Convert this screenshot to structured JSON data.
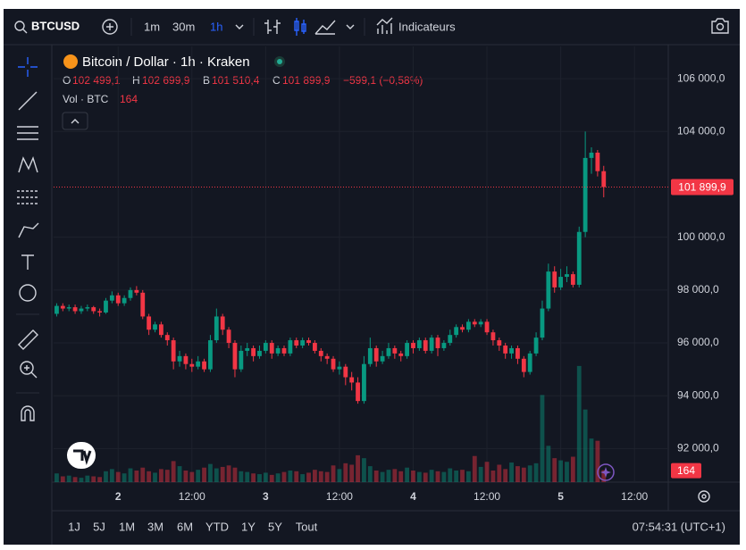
{
  "toolbar": {
    "symbol": "BTCUSD",
    "intervals": [
      "1m",
      "30m",
      "1h"
    ],
    "indicators": "Indicateurs"
  },
  "chart_data": {
    "type": "candlestick",
    "title": "Bitcoin / Dollar · 1h · Kraken",
    "legend": {
      "o_label": "O",
      "o": "102 499,1",
      "h_label": "H",
      "h": "102 699,9",
      "l_label": "B",
      "l": "101 510,4",
      "c_label": "C",
      "c": "101 899,9",
      "change": "−599,1 (−0,58%)",
      "volume_label": "Vol · BTC"
    },
    "up_color": "#089981",
    "down_color": "#f23645",
    "open": [
      97100,
      97400,
      97300,
      97350,
      97200,
      97300,
      97350,
      97200,
      97150,
      97600,
      97800,
      97500,
      97700,
      98000,
      97900,
      97000,
      96500,
      96700,
      96300,
      96100,
      95300,
      95500,
      95200,
      95100,
      95300,
      95000,
      96100,
      97000,
      96500,
      96000,
      95000,
      95700,
      95800,
      95500,
      95700,
      96000,
      95600,
      95800,
      95600,
      96100,
      95900,
      96100,
      96000,
      95700,
      95500,
      95400,
      95000,
      95100,
      94700,
      94500,
      93800,
      95200,
      95800,
      95300,
      95500,
      95800,
      95600,
      95500,
      96000,
      95800,
      96100,
      95700,
      96200,
      95800,
      96000,
      96300,
      96600,
      96500,
      96800,
      96700,
      96800,
      96400,
      96100,
      95900,
      95600,
      95800,
      95400,
      94900,
      95600,
      96200,
      97300,
      98700,
      98100,
      98500,
      98600,
      98200,
      100200,
      103000,
      103200,
      102499.1
    ],
    "high": [
      97500,
      97500,
      97450,
      97450,
      97400,
      97450,
      97400,
      97300,
      97700,
      97950,
      97900,
      97800,
      98100,
      98150,
      98000,
      97100,
      96800,
      96800,
      96400,
      96200,
      95700,
      95600,
      95400,
      95500,
      95400,
      96300,
      97300,
      97100,
      96600,
      96100,
      95900,
      96000,
      95900,
      95900,
      96100,
      96100,
      95900,
      95900,
      96200,
      96200,
      96200,
      96200,
      96100,
      95800,
      95600,
      95500,
      95300,
      95200,
      94900,
      94700,
      95500,
      96200,
      95900,
      95700,
      96000,
      95900,
      95700,
      96100,
      96100,
      96200,
      96200,
      96300,
      96300,
      96100,
      96500,
      96700,
      96700,
      96900,
      96900,
      96900,
      96900,
      96500,
      96200,
      96000,
      95900,
      95900,
      95500,
      95700,
      96400,
      97600,
      99000,
      98900,
      98800,
      98900,
      98700,
      100400,
      104000,
      103400,
      103300,
      102699.9
    ],
    "low": [
      97000,
      97200,
      97200,
      97100,
      97100,
      97200,
      97100,
      97000,
      97100,
      97500,
      97400,
      97400,
      97600,
      97800,
      96900,
      96300,
      96400,
      96200,
      95900,
      95000,
      95100,
      95000,
      94900,
      95000,
      94900,
      94900,
      96000,
      96300,
      95800,
      94700,
      94900,
      95500,
      95300,
      95400,
      95600,
      95400,
      95500,
      95500,
      95500,
      95800,
      95800,
      95900,
      95600,
      95300,
      95200,
      94900,
      94800,
      94400,
      94200,
      93700,
      93700,
      95100,
      95100,
      95200,
      95400,
      95400,
      95300,
      95400,
      95600,
      95700,
      95600,
      95600,
      95500,
      95700,
      95900,
      96200,
      96400,
      96400,
      96600,
      96600,
      96300,
      95900,
      95700,
      95400,
      95400,
      95200,
      94700,
      94800,
      95500,
      96100,
      97200,
      97900,
      98000,
      98300,
      98100,
      98100,
      100000,
      102400,
      102300,
      101510.4
    ],
    "close": [
      97400,
      97300,
      97350,
      97200,
      97300,
      97350,
      97200,
      97150,
      97600,
      97800,
      97500,
      97700,
      98000,
      97900,
      97000,
      96500,
      96700,
      96300,
      96100,
      95300,
      95500,
      95200,
      95100,
      95300,
      95000,
      96100,
      97000,
      96500,
      96000,
      95000,
      95700,
      95800,
      95500,
      95700,
      96000,
      95600,
      95800,
      95600,
      96100,
      95900,
      96100,
      96000,
      95700,
      95500,
      95400,
      95000,
      95100,
      94700,
      94500,
      93800,
      95200,
      95800,
      95300,
      95500,
      95800,
      95600,
      95500,
      96000,
      95800,
      96100,
      95700,
      96200,
      95800,
      96000,
      96300,
      96600,
      96500,
      96800,
      96700,
      96800,
      96400,
      96100,
      95900,
      95600,
      95800,
      95400,
      94900,
      95600,
      96200,
      97300,
      98700,
      98100,
      98500,
      98600,
      98200,
      100200,
      103000,
      103200,
      102499.1,
      101899.9
    ],
    "volume": [
      120,
      80,
      90,
      70,
      60,
      90,
      80,
      70,
      150,
      180,
      140,
      120,
      190,
      160,
      200,
      150,
      130,
      180,
      170,
      290,
      220,
      160,
      140,
      170,
      200,
      250,
      190,
      210,
      230,
      200,
      150,
      140,
      120,
      110,
      130,
      100,
      120,
      140,
      160,
      150,
      110,
      130,
      170,
      150,
      140,
      230,
      180,
      260,
      240,
      370,
      330,
      220,
      160,
      140,
      170,
      180,
      150,
      200,
      160,
      140,
      130,
      170,
      150,
      140,
      190,
      160,
      170,
      150,
      360,
      210,
      280,
      160,
      240,
      180,
      270,
      220,
      200,
      230,
      260,
      1200,
      500,
      330,
      300,
      280,
      350,
      1600,
      1000,
      600,
      570,
      164
    ],
    "last_price_label": "101 899,9",
    "ylim": [
      90730,
      107220
    ],
    "yticks": [
      {
        "value": 92000,
        "label": "92 000,0"
      },
      {
        "value": 94000,
        "label": "94 000,0"
      },
      {
        "value": 96000,
        "label": "96 000,0"
      },
      {
        "value": 98000,
        "label": "98 000,0"
      },
      {
        "value": 100000,
        "label": "100 000,0"
      },
      {
        "value": 104000,
        "label": "104 000,0"
      },
      {
        "value": 106000,
        "label": "106 000,0"
      }
    ],
    "xlim": [
      -0.5,
      99.5
    ],
    "xticks": [
      {
        "value": 10,
        "label": "2"
      },
      {
        "value": 22,
        "label": "12:00"
      },
      {
        "value": 34,
        "label": "3"
      },
      {
        "value": 46,
        "label": "12:00"
      },
      {
        "value": 58,
        "label": "4"
      },
      {
        "value": 70,
        "label": "12:00"
      },
      {
        "value": 82,
        "label": "5"
      },
      {
        "value": 94,
        "label": "12:00"
      }
    ],
    "volume_lim": [
      0,
      6000
    ]
  },
  "bottom_bar": {
    "ranges": [
      "1J",
      "5J",
      "1M",
      "3M",
      "6M",
      "YTD",
      "1Y",
      "5Y",
      "Tout"
    ],
    "clock": "07:54:31 (UTC+1)"
  }
}
